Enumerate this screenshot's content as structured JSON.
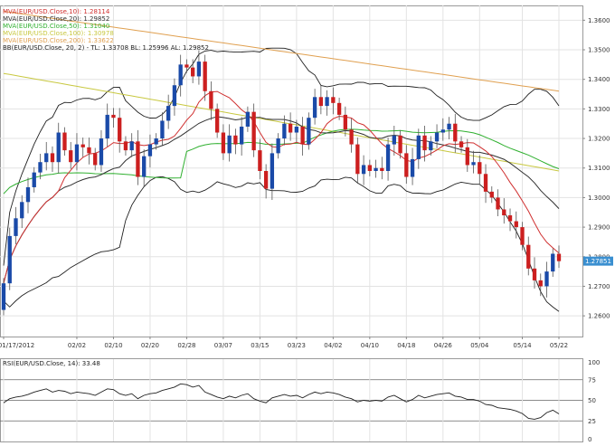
{
  "chart_data": {
    "type": "candlestick",
    "instrument": "EUR/USD",
    "x_labels": [
      "01/17/2012",
      "02/02",
      "02/10",
      "02/20",
      "02/28",
      "03/07",
      "03/15",
      "03/23",
      "04/02",
      "04/10",
      "04/18",
      "04/26",
      "05/04",
      "05/14",
      "05/22"
    ],
    "x_label_index": [
      0,
      12,
      18,
      24,
      30,
      36,
      42,
      48,
      54,
      60,
      66,
      72,
      78,
      85,
      91
    ],
    "y_ticks": [
      "1.3600",
      "1.3500",
      "1.3400",
      "1.3300",
      "1.3200",
      "1.3100",
      "1.3000",
      "1.2900",
      "1.2800",
      "1.2700",
      "1.2600"
    ],
    "ylim": [
      1.253,
      1.365
    ],
    "last_price_label": "1.27851",
    "legend": [
      {
        "text": "MVA(EUR/USD.Close,10): 1.28114",
        "color": "#d03030"
      },
      {
        "text": "MVA(EUR/USD.Close,20): 1.29852",
        "color": "#303030"
      },
      {
        "text": "MVA(EUR/USD.Close,50): 1.31040",
        "color": "#30b030"
      },
      {
        "text": "MVA(EUR/USD.Close,100): 1.30978",
        "color": "#c8c840"
      },
      {
        "text": "MVA(EUR/USD.Close,200): 1.33622",
        "color": "#e0a050"
      },
      {
        "text": "BB(EUR/USD.Close, 20, 2) - TL: 1.33708  BL: 1.25996  AL: 1.29852",
        "color": "#202020"
      }
    ],
    "closes": [
      1.271,
      1.287,
      1.293,
      1.2985,
      1.3035,
      1.3085,
      1.312,
      1.315,
      1.312,
      1.322,
      1.316,
      1.312,
      1.318,
      1.317,
      1.315,
      1.311,
      1.32,
      1.328,
      1.327,
      1.319,
      1.316,
      1.319,
      1.307,
      1.314,
      1.318,
      1.32,
      1.326,
      1.331,
      1.338,
      1.345,
      1.344,
      1.341,
      1.346,
      1.336,
      1.33,
      1.322,
      1.315,
      1.321,
      1.318,
      1.324,
      1.329,
      1.316,
      1.309,
      1.303,
      1.315,
      1.32,
      1.325,
      1.322,
      1.324,
      1.318,
      1.327,
      1.334,
      1.331,
      1.334,
      1.332,
      1.328,
      1.323,
      1.318,
      1.308,
      1.311,
      1.309,
      1.31,
      1.309,
      1.318,
      1.321,
      1.315,
      1.307,
      1.313,
      1.321,
      1.316,
      1.319,
      1.322,
      1.323,
      1.325,
      1.319,
      1.317,
      1.311,
      1.312,
      1.308,
      1.302,
      1.3,
      1.296,
      1.294,
      1.292,
      1.29,
      1.284,
      1.276,
      1.272,
      1.27,
      1.275,
      1.281,
      1.2785
    ],
    "rsi": {
      "label": "RSI(EUR/USD.Close, 14): 33.48",
      "y_ticks": [
        "100",
        "75",
        "50",
        "25",
        "0"
      ],
      "ylim": [
        0,
        100
      ],
      "values": [
        47,
        52,
        54,
        55,
        57,
        60,
        62,
        64,
        60,
        62,
        61,
        58,
        60,
        59,
        58,
        56,
        60,
        64,
        63,
        58,
        56,
        58,
        52,
        56,
        58,
        59,
        62,
        64,
        66,
        70,
        69,
        66,
        68,
        60,
        57,
        54,
        52,
        55,
        53,
        56,
        58,
        52,
        49,
        47,
        53,
        55,
        57,
        55,
        56,
        53,
        57,
        60,
        58,
        60,
        59,
        57,
        54,
        52,
        48,
        50,
        49,
        50,
        49,
        54,
        56,
        52,
        48,
        51,
        56,
        53,
        55,
        57,
        58,
        59,
        55,
        54,
        51,
        51,
        49,
        45,
        44,
        41,
        40,
        39,
        37,
        34,
        28,
        27,
        29,
        35,
        38,
        33.48
      ]
    },
    "grid": true
  }
}
